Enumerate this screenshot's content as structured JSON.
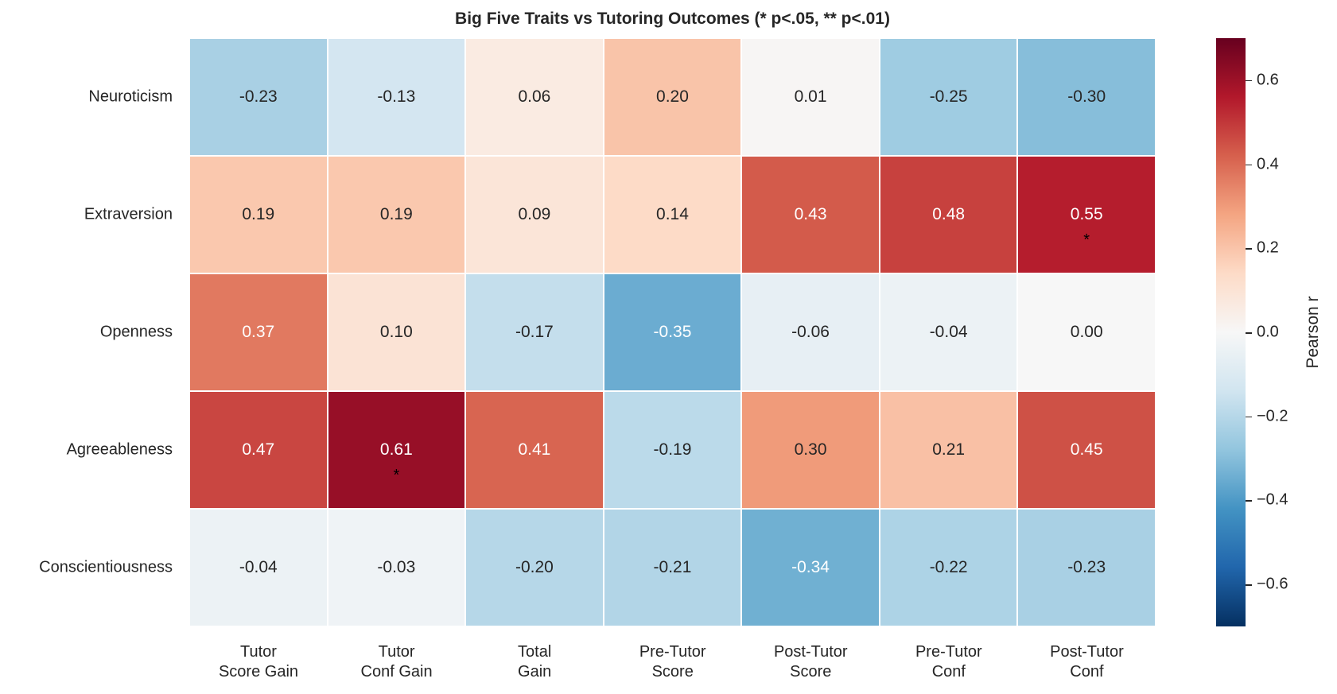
{
  "chart_data": {
    "type": "heatmap",
    "title": "Big Five Traits vs Tutoring Outcomes (* p<.05, ** p<.01)",
    "rows": [
      "Neuroticism",
      "Extraversion",
      "Openness",
      "Agreeableness",
      "Conscientiousness"
    ],
    "columns": [
      [
        "Tutor",
        "Score Gain"
      ],
      [
        "Tutor",
        "Conf Gain"
      ],
      [
        "Total",
        "Gain"
      ],
      [
        "Pre-Tutor",
        "Score"
      ],
      [
        "Post-Tutor",
        "Score"
      ],
      [
        "Pre-Tutor",
        "Conf"
      ],
      [
        "Post-Tutor",
        "Conf"
      ]
    ],
    "values": [
      [
        -0.23,
        -0.13,
        0.06,
        0.2,
        0.01,
        -0.25,
        -0.3
      ],
      [
        0.19,
        0.19,
        0.09,
        0.14,
        0.43,
        0.48,
        0.55
      ],
      [
        0.37,
        0.1,
        -0.17,
        -0.35,
        -0.06,
        -0.04,
        0.0
      ],
      [
        0.47,
        0.61,
        0.41,
        -0.19,
        0.3,
        0.21,
        0.45
      ],
      [
        -0.04,
        -0.03,
        -0.2,
        -0.21,
        -0.34,
        -0.22,
        -0.23
      ]
    ],
    "significance": [
      [
        "",
        "",
        "",
        "",
        "",
        "",
        ""
      ],
      [
        "",
        "",
        "",
        "",
        "",
        "",
        "*"
      ],
      [
        "",
        "",
        "",
        "",
        "",
        "",
        ""
      ],
      [
        "",
        "*",
        "",
        "",
        "",
        "",
        ""
      ],
      [
        "",
        "",
        "",
        "",
        "",
        "",
        ""
      ]
    ],
    "colormap": "RdBu_r",
    "vmin": -0.7,
    "vmax": 0.7,
    "colorbar_label": "Pearson r",
    "colorbar_ticks": [
      0.6,
      0.4,
      0.2,
      0.0,
      -0.2,
      -0.4,
      -0.6
    ],
    "colorbar_tick_labels": [
      "0.6",
      "0.4",
      "0.2",
      "0.0",
      "−0.2",
      "−0.4",
      "−0.6"
    ]
  }
}
